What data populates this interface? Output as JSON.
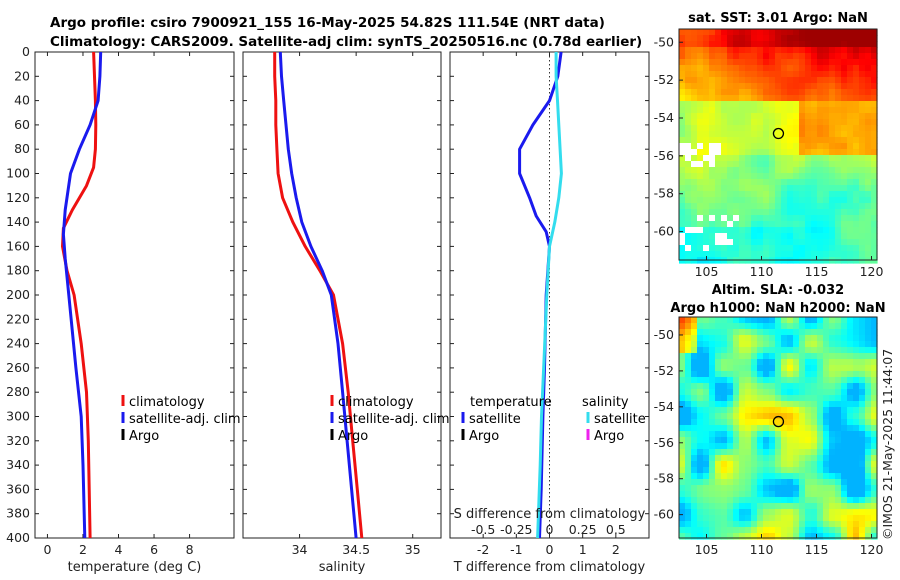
{
  "figure": {
    "title_line1": "Argo profile: csiro 7900921_155 16-May-2025 54.82S 111.54E (NRT data)",
    "title_line2": "Climatology: CARS2009. Satellite-adj clim: synTS_20250516.nc (0.78d earlier)",
    "watermark": "©IMOS 21-May-2025 11:44:07"
  },
  "colors": {
    "climatology": "#ee1111",
    "satellite": "#1a1aee",
    "argo": "#000000",
    "salinity_satellite": "#33ddee",
    "salinity_argo": "#ee22ee"
  },
  "chart_data": [
    {
      "id": "temperature",
      "type": "line",
      "xlabel": "temperature (deg C)",
      "ylabel": "",
      "xlim": [
        -0.7,
        10.5
      ],
      "ylim": [
        400,
        0
      ],
      "xticks": [
        0,
        2,
        4,
        6,
        8
      ],
      "xtick_labels": [
        "0",
        "2",
        "4",
        "6",
        "8"
      ],
      "yticks": [
        0,
        20,
        40,
        60,
        80,
        100,
        120,
        140,
        160,
        180,
        200,
        220,
        240,
        260,
        280,
        300,
        320,
        340,
        360,
        380,
        400
      ],
      "ytick_labels": [
        "0",
        "20",
        "40",
        "60",
        "80",
        "100",
        "120",
        "140",
        "160",
        "180",
        "200",
        "220",
        "240",
        "260",
        "280",
        "300",
        "320",
        "340",
        "360",
        "380",
        "400"
      ],
      "series": [
        {
          "name": "climatology",
          "color_key": "climatology",
          "x": [
            2.6,
            2.65,
            2.7,
            2.72,
            2.7,
            2.6,
            2.2,
            1.4,
            0.9,
            0.85,
            1.1,
            1.5,
            1.9,
            2.2,
            2.3,
            2.35,
            2.4
          ],
          "y": [
            0,
            20,
            40,
            60,
            80,
            95,
            110,
            130,
            145,
            160,
            180,
            200,
            240,
            280,
            320,
            360,
            400
          ]
        },
        {
          "name": "satellite-adj. clim",
          "color_key": "satellite",
          "x": [
            3.0,
            2.95,
            2.85,
            2.4,
            1.8,
            1.3,
            1.0,
            0.9,
            1.0,
            1.2,
            1.6,
            1.9,
            2.0,
            2.05,
            2.1
          ],
          "y": [
            0,
            20,
            40,
            60,
            80,
            100,
            130,
            150,
            170,
            200,
            260,
            300,
            340,
            370,
            400
          ]
        }
      ],
      "legend": {
        "position": "bottom-right",
        "entries": [
          {
            "label": "climatology",
            "color_key": "climatology"
          },
          {
            "label": "satellite-adj. clim",
            "color_key": "satellite"
          },
          {
            "label": "Argo",
            "color_key": "argo"
          }
        ]
      }
    },
    {
      "id": "salinity",
      "type": "line",
      "xlabel": "salinity",
      "xlim": [
        33.5,
        35.25
      ],
      "ylim": [
        400,
        0
      ],
      "xticks": [
        34,
        34.5,
        35
      ],
      "xtick_labels": [
        "34",
        "34.5",
        "35"
      ],
      "series": [
        {
          "name": "climatology",
          "color_key": "climatology",
          "x": [
            33.78,
            33.78,
            33.79,
            33.79,
            33.8,
            33.81,
            33.85,
            33.94,
            34.05,
            34.18,
            34.3,
            34.38,
            34.43,
            34.47,
            34.51,
            34.55
          ],
          "y": [
            0,
            20,
            40,
            60,
            80,
            100,
            120,
            140,
            160,
            180,
            200,
            240,
            280,
            320,
            360,
            400
          ]
        },
        {
          "name": "satellite-adj. clim",
          "color_key": "satellite",
          "x": [
            33.83,
            33.84,
            33.86,
            33.88,
            33.9,
            33.93,
            33.97,
            34.02,
            34.1,
            34.2,
            34.28,
            34.34,
            34.38,
            34.42,
            34.46,
            34.5
          ],
          "y": [
            0,
            20,
            40,
            60,
            80,
            100,
            120,
            140,
            160,
            180,
            200,
            240,
            280,
            320,
            360,
            400
          ]
        }
      ],
      "legend": {
        "position": "bottom-right",
        "entries": [
          {
            "label": "climatology",
            "color_key": "climatology"
          },
          {
            "label": "satellite-adj. clim",
            "color_key": "satellite"
          },
          {
            "label": "Argo",
            "color_key": "argo"
          }
        ]
      }
    },
    {
      "id": "differences",
      "type": "line",
      "xlabel": "T difference from climatology",
      "secondary_xlabel": "S difference from climatology",
      "xlim": [
        -3,
        3
      ],
      "ylim": [
        400,
        0
      ],
      "xticks": [
        -2,
        -1,
        0,
        1,
        2
      ],
      "xtick_labels": [
        "-2",
        "-1",
        "0",
        "1",
        "2"
      ],
      "secondary_xtick_values": [
        -0.5,
        -0.25,
        0,
        0.25,
        0.5
      ],
      "secondary_xtick_labels": [
        "-0.5",
        "-0.25",
        "0",
        "0.25",
        "0.5"
      ],
      "secondary_xlim": [
        -0.75,
        0.75
      ],
      "series": [
        {
          "name": "temperature satellite",
          "color_key": "satellite",
          "axis": "T",
          "x": [
            0.35,
            0.25,
            0.0,
            -0.5,
            -0.9,
            -0.9,
            -0.6,
            -0.4,
            -0.1,
            0.0,
            -0.1,
            -0.15,
            -0.2,
            -0.25,
            -0.3
          ],
          "y": [
            0,
            20,
            40,
            60,
            80,
            100,
            120,
            135,
            148,
            160,
            200,
            260,
            300,
            360,
            400
          ]
        },
        {
          "name": "salinity satellite",
          "color_key": "salinity_satellite",
          "axis": "S",
          "x": [
            0.05,
            0.05,
            0.06,
            0.07,
            0.08,
            0.09,
            0.07,
            0.04,
            0.0,
            -0.02,
            -0.04,
            -0.06,
            -0.07,
            -0.08,
            -0.09
          ],
          "y": [
            0,
            20,
            40,
            60,
            80,
            100,
            120,
            140,
            160,
            200,
            250,
            300,
            340,
            370,
            400
          ]
        }
      ],
      "legend_temperature": {
        "title": "temperature",
        "entries": [
          {
            "label": "satellite",
            "color_key": "satellite"
          },
          {
            "label": "Argo",
            "color_key": "argo"
          }
        ]
      },
      "legend_salinity": {
        "title": "salinity",
        "entries": [
          {
            "label": "satellite",
            "color_key": "salinity_satellite"
          },
          {
            "label": "Argo",
            "color_key": "salinity_argo"
          }
        ]
      }
    },
    {
      "id": "sst_map",
      "type": "heatmap",
      "title": "sat. SST: 3.01 Argo: NaN",
      "xlim": [
        102.5,
        120.5
      ],
      "ylim": [
        -61.5,
        -49.3
      ],
      "xticks": [
        105,
        110,
        115,
        120
      ],
      "xtick_labels": [
        "105",
        "110",
        "115",
        "120"
      ],
      "yticks": [
        -50,
        -52,
        -54,
        -56,
        -58,
        -60
      ],
      "ytick_labels": [
        "-50",
        "-52",
        "-54",
        "-56",
        "-58",
        "-60"
      ],
      "marker": {
        "lon": 111.54,
        "lat": -54.82
      }
    },
    {
      "id": "sla_map",
      "type": "heatmap",
      "title_line1": "Altim. SLA: -0.032",
      "title_line2": "Argo h1000: NaN h2000: NaN",
      "xlim": [
        102.5,
        120.5
      ],
      "ylim": [
        -61.3,
        -49.0
      ],
      "xticks": [
        105,
        110,
        115,
        120
      ],
      "xtick_labels": [
        "105",
        "110",
        "115",
        "120"
      ],
      "yticks": [
        -50,
        -52,
        -54,
        -56,
        -58,
        -60
      ],
      "ytick_labels": [
        "-50",
        "-52",
        "-54",
        "-56",
        "-58",
        "-60"
      ],
      "marker": {
        "lon": 111.54,
        "lat": -54.82
      }
    }
  ]
}
